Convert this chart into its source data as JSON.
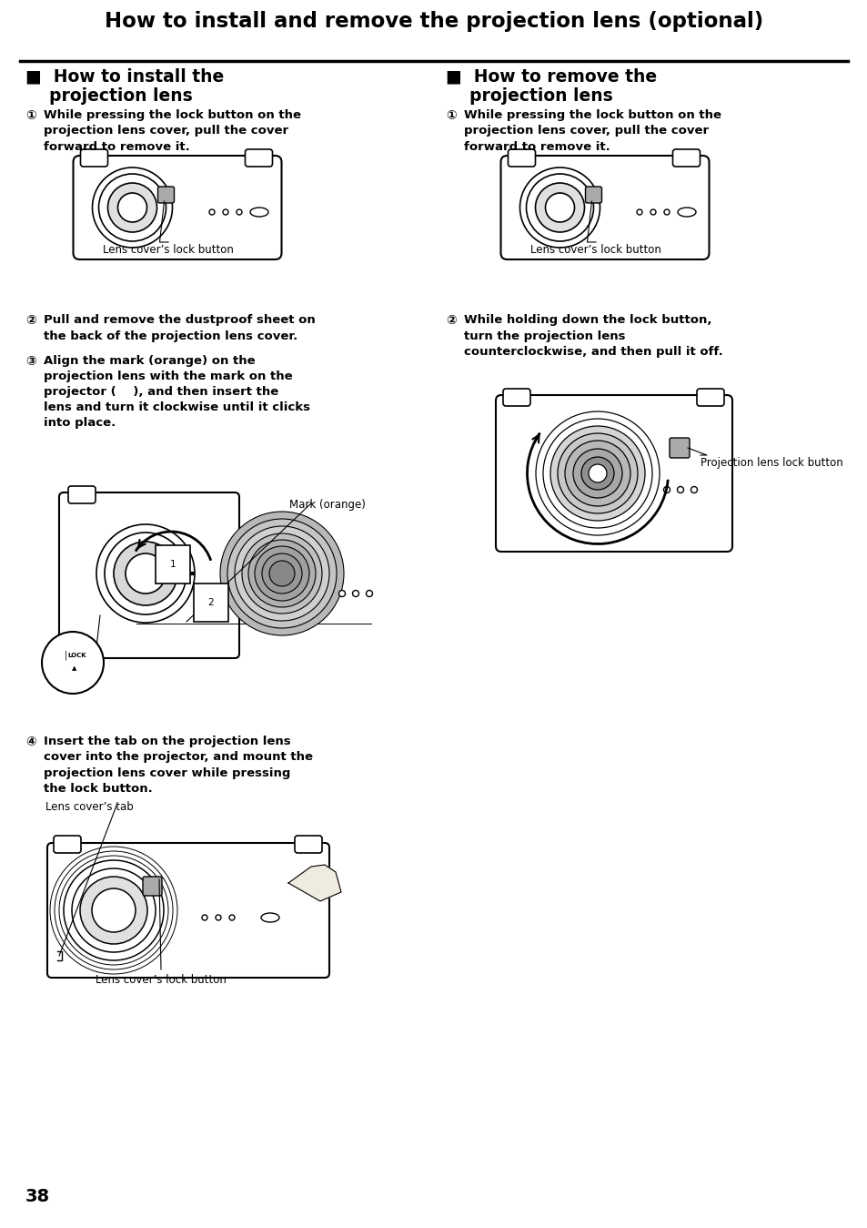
{
  "title": "How to install and remove the projection lens (optional)",
  "bg_color": "#ffffff",
  "page_num": "38",
  "lens_cover_lock_button": "Lens cover’s lock button",
  "projection_lens_lock_button": "Projection lens lock button",
  "mark_orange": "Mark (orange)",
  "lens_cover_tab": "Lens cover’s tab",
  "left_heading1": "■  How to install the",
  "left_heading2": "    projection lens",
  "right_heading1": "■  How to remove the",
  "right_heading2": "    projection lens",
  "step_circle_1": "①",
  "step_circle_2": "②",
  "step_circle_3": "③",
  "step_circle_4": "④",
  "left_s1": "While pressing the lock button on the\nprojection lens cover, pull the cover\nforward to remove it.",
  "left_s2": "Pull and remove the dustproof sheet on\nthe back of the projection lens cover.",
  "left_s3a": "Align the mark (orange) on the",
  "left_s3b": "projection lens with the mark on the",
  "left_s3c": "projector (    ), and then insert the",
  "left_s3d": "lens and turn it clockwise until it clicks",
  "left_s3e": "into place.",
  "left_s4": "Insert the tab on the projection lens\ncover into the projector, and mount the\nprojection lens cover while pressing\nthe lock button.",
  "right_s1": "While pressing the lock button on the\nprojection lens cover, pull the cover\nforward to remove it.",
  "right_s2": "While holding down the lock button,\nturn the projection lens\ncounterclockwise, and then pull it off."
}
